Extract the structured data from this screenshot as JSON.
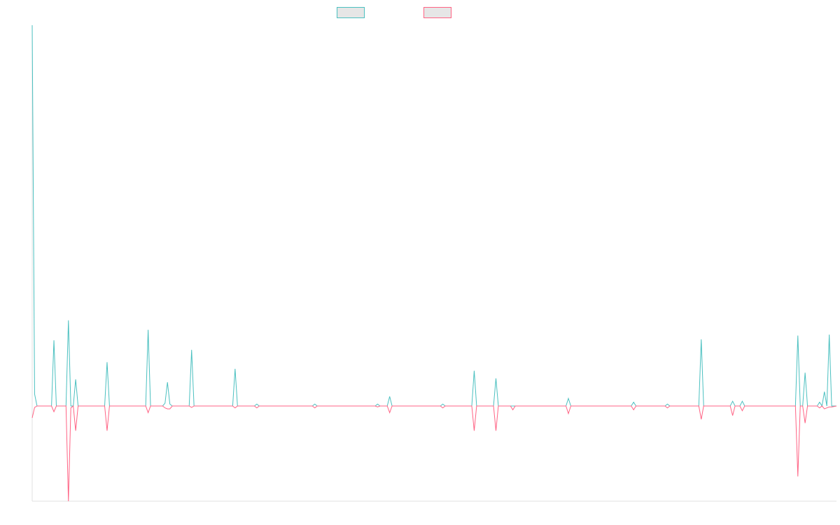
{
  "chart_data": {
    "type": "line",
    "x": [
      0,
      1,
      2,
      8,
      9,
      10,
      14,
      15,
      16,
      17,
      18,
      19,
      30,
      31,
      32,
      47,
      48,
      49,
      54,
      55,
      56,
      57,
      58,
      65,
      66,
      67,
      83,
      84,
      85,
      92,
      93,
      94,
      116,
      117,
      118,
      142,
      143,
      144,
      147,
      148,
      149,
      169,
      170,
      171,
      182,
      183,
      184,
      191,
      192,
      193,
      198,
      199,
      200,
      221,
      222,
      223,
      248,
      249,
      250,
      262,
      263,
      264,
      276,
      277,
      278,
      289,
      290,
      291,
      293,
      294,
      295,
      316,
      317,
      318,
      319,
      320,
      321,
      325,
      326,
      327,
      328,
      329,
      330,
      331,
      333
    ],
    "xlim": [
      0,
      333
    ],
    "ylim": [
      -1,
      4
    ],
    "grid": false,
    "series": [
      {
        "color": "#4bc0c0",
        "values": [
          4,
          0.125,
          0,
          0,
          0.69,
          0,
          0,
          0.9,
          0,
          0,
          0.28,
          0,
          0,
          0.46,
          0,
          0,
          0.8,
          0,
          0,
          0.03,
          0.25,
          0.02,
          0,
          0,
          0.59,
          0,
          0,
          0.39,
          0,
          0,
          0.02,
          0,
          0,
          0.02,
          0,
          0,
          0.02,
          0,
          0,
          0.1,
          0,
          0,
          0.02,
          0,
          0,
          0.37,
          0,
          0,
          0.29,
          0,
          0,
          0,
          0,
          0,
          0.08,
          0,
          0,
          0.04,
          0,
          0,
          0.02,
          0,
          0,
          0.7,
          0,
          0,
          0.05,
          0,
          0,
          0.05,
          0,
          0,
          0.74,
          0,
          0,
          0.35,
          0,
          0,
          0.04,
          0,
          0.15,
          0,
          0.75,
          0,
          0
        ]
      },
      {
        "color": "#ff6384",
        "values": [
          -0.125,
          -0.015,
          0,
          0,
          -0.06,
          0,
          0,
          -1,
          -0.02,
          0,
          -0.26,
          0,
          0,
          -0.26,
          0,
          0,
          -0.07,
          0,
          0,
          -0.02,
          -0.03,
          -0.03,
          0,
          0,
          -0.015,
          0,
          0,
          -0.02,
          0,
          0,
          -0.02,
          0,
          0,
          -0.02,
          0,
          0,
          -0.01,
          0,
          0,
          -0.07,
          0,
          0,
          -0.02,
          0,
          0,
          -0.26,
          0,
          0,
          -0.26,
          0,
          0,
          -0.04,
          0,
          0,
          -0.08,
          0,
          0,
          -0.04,
          0,
          0,
          -0.02,
          0,
          0,
          -0.14,
          0,
          0,
          -0.1,
          0,
          0,
          -0.05,
          0,
          0,
          -0.74,
          0,
          0,
          -0.18,
          0,
          0,
          -0.02,
          0,
          -0.03,
          -0.02,
          -0.01,
          -0.01,
          0
        ]
      }
    ]
  }
}
